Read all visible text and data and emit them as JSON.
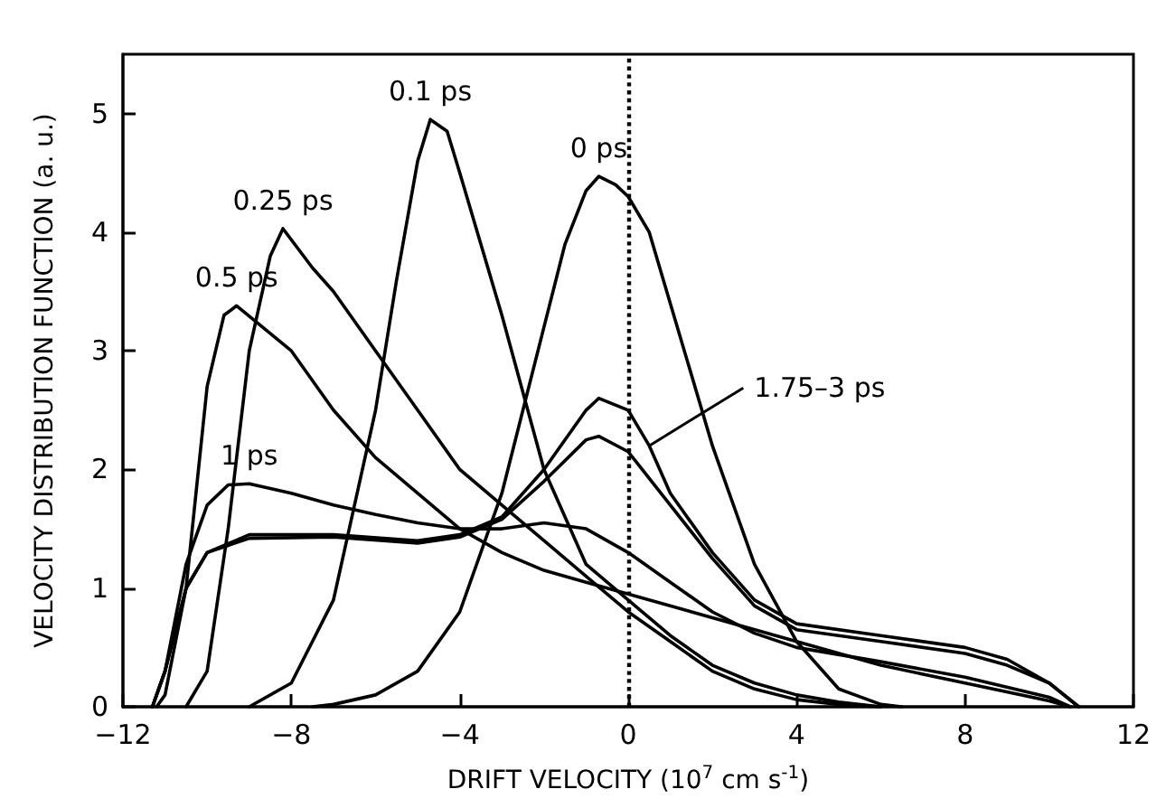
{
  "chart_data": {
    "type": "line",
    "xlabel": "DRIFT VELOCITY (10$^{7}$ cm s$^{-1}$)",
    "ylabel": "VELOCITY DISTRIBUTION FUNCTION (a. u.)",
    "xlim": [
      -12,
      12
    ],
    "xticks": [
      -12,
      -8,
      -4,
      0,
      4,
      8,
      12
    ],
    "ylim": [
      0,
      5.5
    ],
    "yticks": [
      0,
      1,
      2,
      3,
      4,
      5
    ],
    "grid": false,
    "marker": "none",
    "line_style": "solid",
    "series": [
      {
        "color": "#000000",
        "x": [
          -7.5,
          -7,
          -6,
          -5,
          -4,
          -3,
          -2,
          -1.5,
          -1,
          -0.7,
          -0.3,
          0,
          0.5,
          1,
          2,
          3,
          4,
          5,
          6,
          6.5
        ],
        "values": [
          0,
          0.02,
          0.1,
          0.3,
          0.8,
          1.8,
          3.2,
          3.9,
          4.35,
          4.47,
          4.4,
          4.3,
          4.0,
          3.4,
          2.2,
          1.2,
          0.55,
          0.15,
          0.02,
          0
        ]
      },
      {
        "color": "#000000",
        "x": [
          -9,
          -8,
          -7,
          -6,
          -5.5,
          -5,
          -4.7,
          -4.3,
          -4,
          -3,
          -2,
          -1,
          0,
          1,
          2,
          3,
          4,
          5,
          6
        ],
        "values": [
          0,
          0.2,
          0.9,
          2.5,
          3.6,
          4.6,
          4.95,
          4.85,
          4.5,
          3.3,
          2.0,
          1.2,
          0.9,
          0.6,
          0.35,
          0.2,
          0.1,
          0.04,
          0
        ]
      },
      {
        "color": "#000000",
        "x": [
          -10.5,
          -10,
          -9.5,
          -9,
          -8.5,
          -8.2,
          -7.5,
          -7,
          -6,
          -5,
          -4,
          -3,
          -2,
          -1,
          0,
          1,
          2,
          3,
          4,
          5,
          6
        ],
        "values": [
          0,
          0.3,
          1.5,
          3.0,
          3.8,
          4.03,
          3.7,
          3.5,
          3.0,
          2.5,
          2.0,
          1.7,
          1.4,
          1.1,
          0.8,
          0.55,
          0.3,
          0.15,
          0.06,
          0.02,
          0
        ]
      },
      {
        "color": "#000000",
        "x": [
          -11.2,
          -11,
          -10.5,
          -10,
          -9.6,
          -9.3,
          -8,
          -7,
          -6,
          -4,
          -3,
          -2,
          -1,
          0,
          2,
          4,
          6,
          8,
          10,
          10.5
        ],
        "values": [
          0,
          0.1,
          1.0,
          2.7,
          3.3,
          3.38,
          3.0,
          2.5,
          2.1,
          1.5,
          1.3,
          1.15,
          1.05,
          0.95,
          0.75,
          0.55,
          0.35,
          0.2,
          0.05,
          0
        ]
      },
      {
        "color": "#000000",
        "x": [
          -11.3,
          -11,
          -10.5,
          -10,
          -9.5,
          -9,
          -8,
          -7,
          -6,
          -5,
          -4,
          -3,
          -2,
          -1,
          0,
          1,
          2,
          3,
          4,
          6,
          8,
          10,
          10.5
        ],
        "values": [
          0,
          0.3,
          1.2,
          1.7,
          1.87,
          1.88,
          1.8,
          1.7,
          1.62,
          1.55,
          1.5,
          1.5,
          1.55,
          1.5,
          1.3,
          1.05,
          0.8,
          0.62,
          0.5,
          0.38,
          0.25,
          0.08,
          0
        ]
      },
      {
        "color": "#000000",
        "x": [
          -11.3,
          -11,
          -10.5,
          -10,
          -9,
          -7,
          -5,
          -4,
          -3,
          -2,
          -1,
          -0.7,
          0,
          0.5,
          1,
          2,
          3,
          4,
          6,
          8,
          9,
          10,
          10.7
        ],
        "values": [
          0,
          0.3,
          1.0,
          1.3,
          1.45,
          1.45,
          1.4,
          1.45,
          1.6,
          2.0,
          2.5,
          2.6,
          2.5,
          2.2,
          1.8,
          1.3,
          0.9,
          0.7,
          0.6,
          0.5,
          0.4,
          0.2,
          0
        ]
      },
      {
        "color": "#000000",
        "x": [
          -11.3,
          -11,
          -10.5,
          -10,
          -9,
          -7,
          -5,
          -4,
          -3,
          -2,
          -1,
          -0.7,
          0,
          1,
          2,
          3,
          4,
          6,
          8,
          9,
          10,
          10.7
        ],
        "values": [
          0,
          0.3,
          1.0,
          1.3,
          1.42,
          1.43,
          1.38,
          1.43,
          1.58,
          1.9,
          2.25,
          2.28,
          2.15,
          1.7,
          1.25,
          0.85,
          0.65,
          0.55,
          0.45,
          0.35,
          0.2,
          0
        ]
      }
    ],
    "ref_lines": [
      {
        "axis": "x",
        "value": 0,
        "color": "#000000",
        "line_style": "dotted"
      }
    ],
    "annotations": [
      {
        "text": "0.1 ps",
        "x": -4.7,
        "y": 4.95
      },
      {
        "text": "0 ps",
        "x": -0.7,
        "y": 4.47
      },
      {
        "text": "0.25 ps",
        "x": -8.2,
        "y": 4.03
      },
      {
        "text": "0.5 ps",
        "x": -9.3,
        "y": 3.38
      },
      {
        "text": "1 ps",
        "x": -9,
        "y": 1.88
      },
      {
        "text": "1.75–3 ps",
        "x": 0.5,
        "y": 2.2
      }
    ]
  }
}
